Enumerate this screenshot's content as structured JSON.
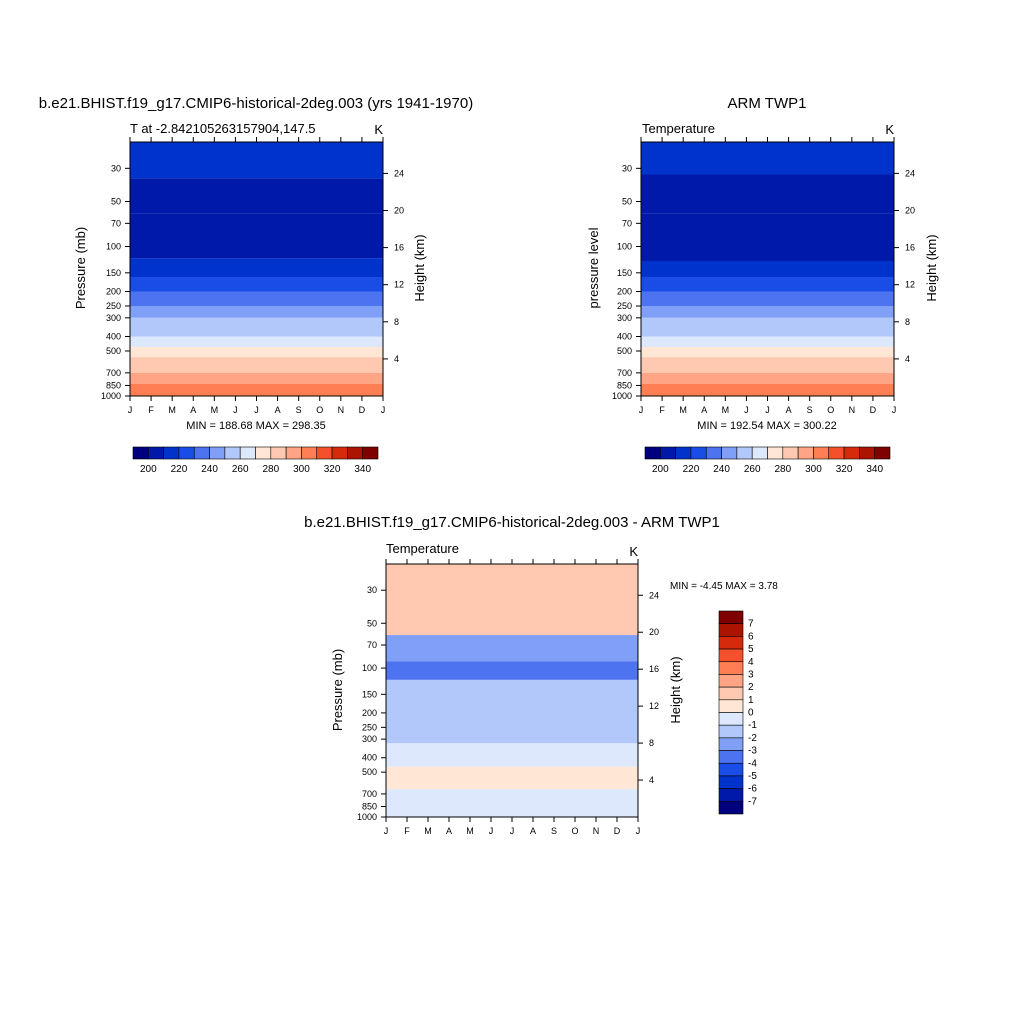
{
  "months": [
    "J",
    "F",
    "M",
    "A",
    "M",
    "J",
    "J",
    "A",
    "S",
    "O",
    "N",
    "D",
    "J"
  ],
  "pressure_ticks": [
    30,
    50,
    70,
    100,
    150,
    200,
    250,
    300,
    400,
    500,
    700,
    850,
    1000
  ],
  "height_ticks": [
    24,
    20,
    16,
    12,
    8,
    4
  ],
  "colors": {
    "abs_levels": [
      "#00007f",
      "#0019a8",
      "#0033cc",
      "#1a4ce6",
      "#4d73f0",
      "#80a0f7",
      "#b3c8fa",
      "#dde8fd",
      "#ffe6d5",
      "#ffc8b0",
      "#ffa585",
      "#ff7f55",
      "#f5502c",
      "#d52a0c",
      "#aa1400",
      "#7f0000"
    ],
    "diff_levels": [
      "#00007f",
      "#0019a8",
      "#0033cc",
      "#1a4ce6",
      "#4d73f0",
      "#80a0f7",
      "#b3c8fa",
      "#dde8fd",
      "#ffe6d5",
      "#ffc8b0",
      "#ffa585",
      "#ff7f55",
      "#f5502c",
      "#d52a0c",
      "#aa1400",
      "#7f0000"
    ]
  },
  "chart_data": [
    {
      "type": "heatmap",
      "title": "b.e21.BHIST.f19_g17.CMIP6-historical-2deg.003 (yrs 1941-1970)",
      "left_label": "T at -2.842105263157904,147.5",
      "units": "K",
      "ylabel": "Pressure (mb)",
      "ylabel_right": "Height (km)",
      "stats": "MIN = 188.68 MAX = 298.35",
      "colorbar_ticks": [
        "200",
        "220",
        "240",
        "260",
        "280",
        "300",
        "320",
        "340"
      ],
      "bands": [
        {
          "p": 20,
          "value": 205
        },
        {
          "p": 35,
          "value": 200
        },
        {
          "p": 60,
          "value": 195
        },
        {
          "p": 120,
          "value": 191
        },
        {
          "p": 160,
          "value": 200
        },
        {
          "p": 200,
          "value": 210
        },
        {
          "p": 250,
          "value": 220
        },
        {
          "p": 300,
          "value": 232
        },
        {
          "p": 400,
          "value": 245
        },
        {
          "p": 470,
          "value": 255
        },
        {
          "p": 550,
          "value": 268
        },
        {
          "p": 700,
          "value": 278
        },
        {
          "p": 830,
          "value": 285
        },
        {
          "p": 1000,
          "value": 292
        }
      ]
    },
    {
      "type": "heatmap",
      "title": "ARM TWP1",
      "left_label": "Temperature",
      "units": "K",
      "ylabel": "pressure level",
      "ylabel_right": "Height (km)",
      "stats": "MIN = 192.54 MAX = 300.22",
      "colorbar_ticks": [
        "200",
        "220",
        "240",
        "260",
        "280",
        "300",
        "320",
        "340"
      ],
      "bands": [
        {
          "p": 20,
          "value": 205
        },
        {
          "p": 33,
          "value": 200
        },
        {
          "p": 60,
          "value": 195
        },
        {
          "p": 125,
          "value": 191
        },
        {
          "p": 160,
          "value": 200
        },
        {
          "p": 200,
          "value": 210
        },
        {
          "p": 250,
          "value": 220
        },
        {
          "p": 300,
          "value": 232
        },
        {
          "p": 400,
          "value": 245
        },
        {
          "p": 470,
          "value": 255
        },
        {
          "p": 550,
          "value": 268
        },
        {
          "p": 700,
          "value": 278
        },
        {
          "p": 830,
          "value": 285
        },
        {
          "p": 1000,
          "value": 292
        }
      ]
    },
    {
      "type": "heatmap",
      "title": "b.e21.BHIST.f19_g17.CMIP6-historical-2deg.003 - ARM TWP1",
      "left_label": "Temperature",
      "units": "K",
      "ylabel": "Pressure (mb)",
      "ylabel_right": "Height (km)",
      "stats": "MIN =  -4.45 MAX =   3.78",
      "colorbar_ticks": [
        "7",
        "6",
        "5",
        "4",
        "3",
        "2",
        "1",
        "0",
        "-1",
        "-2",
        "-3",
        "-4",
        "-5",
        "-6",
        "-7"
      ],
      "regions": [
        {
          "pmin": 20,
          "pmax": 60,
          "value": 1.5
        },
        {
          "pmin": 60,
          "pmax": 90,
          "value": -2.5
        },
        {
          "pmin": 90,
          "pmax": 120,
          "value": -3.5
        },
        {
          "pmin": 120,
          "pmax": 320,
          "value": -1.5
        },
        {
          "pmin": 320,
          "pmax": 460,
          "value": -0.5
        },
        {
          "pmin": 460,
          "pmax": 650,
          "value": 0.5
        },
        {
          "pmin": 650,
          "pmax": 1000,
          "value": -0.5
        }
      ]
    }
  ]
}
